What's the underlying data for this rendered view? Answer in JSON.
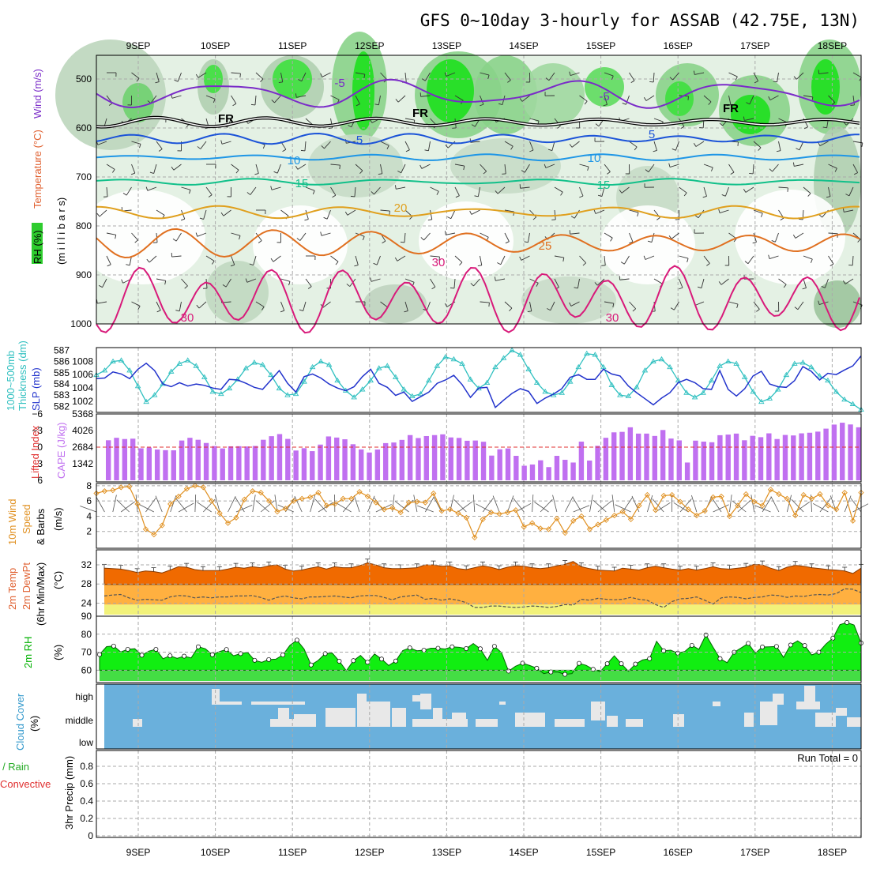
{
  "title": "GFS 0~10day 3-hourly for ASSAB (42.75E, 13N)",
  "dates": [
    "9SEP",
    "10SEP",
    "11SEP",
    "12SEP",
    "13SEP",
    "14SEP",
    "15SEP",
    "16SEP",
    "17SEP",
    "18SEP"
  ],
  "panel_labels": {
    "upper": {
      "wind": "Wind (m/s)",
      "temperature": "Temperature (°C)",
      "rh": "RH (%)",
      "units": "(m i l l i b a r s)"
    },
    "thickness": {
      "thick": "1000~500mb",
      "thick2": "Thickness (dm)",
      "slp": "SLP (mb)"
    },
    "cape": {
      "li": "Lifted Index",
      "cape": "CAPE (J/kg)"
    },
    "wind10": {
      "l1": "10m Wind",
      "l2": "Speed",
      "l3": "& Barbs",
      "units": "(m/s)"
    },
    "temp2m": {
      "l1": "2m Temp",
      "l2": "2m DewPt",
      "l3": "(6hr Min/Max)",
      "units": "(°C)"
    },
    "rh2m": {
      "l1": "2m RH",
      "units": "(%)"
    },
    "cloud": {
      "l1": "Cloud Cover",
      "units": "(%)"
    },
    "precip": {
      "l1": "Total / Rain",
      "l2": "Convective",
      "l3": "3hr Precip (mm)"
    },
    "run_total": "Run Total = 0"
  },
  "contour_labels": {
    "fr": "FR",
    "m5": "-5",
    "p5": "5",
    "p10": "10",
    "p15": "15",
    "p20": "20",
    "p25": "25",
    "p30": "30"
  },
  "colors": {
    "purple": "#7a2bc8",
    "blue": "#1b53d8",
    "lightblue": "#1e96e6",
    "teal": "#12c08a",
    "orange": "#e0a01e",
    "darkorange": "#e07020",
    "magenta": "#d81a7a",
    "slp": "#2233cc",
    "thick": "#30c0c0",
    "cape": "#c070f0",
    "wind": "#e09020",
    "temp": "#f06a00",
    "dew": "#ffb040",
    "rh": "#00dd00",
    "cloud": "#6ab0dc"
  },
  "chart_data": [
    {
      "type": "area",
      "name": "vertical-profile",
      "y_axis": {
        "label": "millibars",
        "ticks": [
          500,
          600,
          700,
          800,
          900,
          1000
        ],
        "range": [
          1000,
          450
        ]
      },
      "x_axis": {
        "ticks": [
          "9SEP",
          "10SEP",
          "11SEP",
          "12SEP",
          "13SEP",
          "14SEP",
          "15SEP",
          "16SEP",
          "17SEP",
          "18SEP"
        ]
      },
      "temperature_contours_C": {
        "-5": 530,
        "FR": 588,
        "5": 622,
        "10": 660,
        "15": 710,
        "20": 772,
        "25": 835,
        "30": 950
      }
    },
    {
      "type": "line",
      "name": "slp-thickness",
      "slp_axis": {
        "ticks": [
          1002,
          1004,
          1006,
          1008
        ],
        "range": [
          1000.6,
          1009.8
        ]
      },
      "thickness_axis": {
        "ticks": [
          582,
          583,
          584,
          585,
          586,
          587
        ],
        "range": [
          581.6,
          587.1
        ]
      },
      "slp_mb": [
        1005.4,
        1005.5,
        1006.4,
        1006.1,
        1005.4,
        1006.8,
        1007.7,
        1006.6,
        1004.6,
        1004.2,
        1004.8,
        1004.3,
        1004.6,
        1004.4,
        1004.0,
        1003.8,
        1005.3,
        1005.2,
        1004.7,
        1004.1,
        1003.8,
        1005.2,
        1006.6,
        1004.7,
        1003.4,
        1005.7,
        1006.1,
        1005.5,
        1004.6,
        1004.0,
        1003.6,
        1004.2,
        1005.7,
        1006.8,
        1004.7,
        1004.1,
        1002.9,
        1003.4,
        1002.0,
        1002.7,
        1003.4,
        1004.7,
        1005.2,
        1005.9,
        1004.5,
        1002.6,
        1004.0,
        1004.1,
        1001.1,
        1002.2,
        1003.2,
        1003.9,
        1003.5,
        1001.7,
        1002.5,
        1003.1,
        1003.9,
        1005.6,
        1006.0,
        1005.3,
        1005.3,
        1006.8,
        1006.1,
        1005.8,
        1004.3,
        1003.3,
        1002.4,
        1001.5,
        1002.5,
        1003.3,
        1004.8,
        1005.3,
        1004.8,
        1003.9,
        1003.8,
        1006.6,
        1003.8,
        1002.8,
        1003.9,
        1005.8,
        1006.5,
        1004.6,
        1004.2,
        1004.1,
        1005.1,
        1007.2,
        1006.5,
        1005.2,
        1006.2,
        1006.0,
        1006.7,
        1007.3,
        1008.8
      ],
      "thickness_dm": [
        584.8,
        585.2,
        586.0,
        586.1,
        585.2,
        583.8,
        582.4,
        583.0,
        584.0,
        585.1,
        585.8,
        586.1,
        585.6,
        584.6,
        583.3,
        583.1,
        583.6,
        584.4,
        585.4,
        585.9,
        585.7,
        584.8,
        583.6,
        583.0,
        583.1,
        584.2,
        585.5,
        586.0,
        585.7,
        584.3,
        583.4,
        582.8,
        583.5,
        584.3,
        585.4,
        585.6,
        584.6,
        583.5,
        582.9,
        583.1,
        584.3,
        585.6,
        586.4,
        586.2,
        585.8,
        584.4,
        583.6,
        584.1,
        585.5,
        586.3,
        587.0,
        586.6,
        585.3,
        584.1,
        583.3,
        583.0,
        583.2,
        584.2,
        585.5,
        586.7,
        586.6,
        585.5,
        583.9,
        583.0,
        582.9,
        583.7,
        585.2,
        586.0,
        586.2,
        585.5,
        584.3,
        583.2,
        582.8,
        583.2,
        584.3,
        585.6,
        586.0,
        585.8,
        584.6,
        583.3,
        582.4,
        582.7,
        583.5,
        584.8,
        585.8,
        585.9,
        585.5,
        584.7,
        584.3,
        583.3,
        582.6,
        582.2,
        581.7
      ]
    },
    {
      "type": "bar",
      "name": "cape-lifted-index",
      "cape_axis": {
        "ticks": [
          1342,
          2684,
          4026,
          5368
        ],
        "range": [
          0,
          5368
        ]
      },
      "lifted_index_axis": {
        "ticks": [
          -6,
          -3,
          0,
          3,
          6
        ],
        "range": [
          6,
          -6
        ]
      },
      "cape_Jkg": [
        3240,
        3440,
        3340,
        3370,
        2590,
        2650,
        2490,
        2440,
        2430,
        3220,
        3440,
        3280,
        3020,
        2770,
        2580,
        2750,
        2760,
        2740,
        2780,
        3280,
        3570,
        3740,
        3350,
        2410,
        2600,
        2360,
        2890,
        3550,
        3460,
        3320,
        2920,
        2500,
        2250,
        2490,
        3010,
        3060,
        3270,
        3660,
        3420,
        3580,
        3660,
        3720,
        3470,
        3430,
        3200,
        3220,
        3120,
        2000,
        2510,
        2580,
        1980,
        1180,
        1280,
        1620,
        1070,
        1980,
        1660,
        1440,
        3130,
        1600,
        2790,
        3440,
        3880,
        3920,
        4290,
        3780,
        3780,
        3590,
        4070,
        3380,
        3230,
        1440,
        3210,
        3130,
        3080,
        3650,
        3700,
        3780,
        3240,
        3600,
        3490,
        3800,
        3340,
        3670,
        3630,
        3800,
        3850,
        3940,
        4180,
        4510,
        4660,
        4520,
        4290
      ]
    },
    {
      "type": "line",
      "name": "wind-10m",
      "y_axis": {
        "ticks": [
          2,
          4,
          6,
          8
        ],
        "range": [
          0,
          8.3
        ]
      },
      "speed_ms": [
        7.0,
        7.3,
        7.4,
        7.8,
        7.9,
        5.6,
        2.3,
        1.6,
        2.8,
        5.6,
        6.6,
        7.6,
        8.0,
        7.8,
        6.0,
        4.4,
        3.1,
        3.8,
        6.2,
        7.3,
        7.1,
        6.0,
        4.6,
        5.0,
        6.0,
        6.3,
        6.5,
        7.1,
        5.4,
        5.6,
        6.3,
        6.3,
        7.2,
        6.6,
        5.8,
        4.9,
        5.1,
        4.5,
        5.8,
        5.9,
        5.8,
        7.0,
        4.7,
        4.9,
        4.4,
        3.8,
        1.2,
        3.6,
        4.5,
        4.3,
        4.5,
        4.8,
        2.6,
        3.1,
        2.4,
        2.3,
        3.7,
        1.8,
        3.4,
        4.0,
        2.3,
        2.9,
        3.5,
        4.1,
        4.6,
        3.6,
        5.4,
        6.8,
        4.8,
        6.7,
        6.8,
        5.9,
        4.9,
        4.1,
        4.7,
        6.5,
        6.6,
        4.0,
        5.4,
        6.9,
        5.9,
        5.4,
        7.5,
        6.9,
        6.3,
        4.1,
        6.8,
        6.3,
        6.9,
        5.4,
        4.9,
        7.1,
        3.4,
        7.1
      ]
    },
    {
      "type": "area",
      "name": "temp-2m",
      "y_axis": {
        "ticks": [
          24,
          28,
          32
        ],
        "range": [
          21.6,
          34.8
        ]
      },
      "temp_C": [
        31.3,
        31.2,
        31.1,
        30.8,
        30.4,
        30.7,
        30.6,
        30.3,
        30.9,
        31.6,
        31.5,
        31.0,
        30.8,
        30.8,
        30.8,
        31.1,
        31.5,
        31.3,
        31.6,
        31.4,
        31.8,
        32.0,
        31.1,
        30.7,
        30.9,
        31.3,
        31.6,
        31.1,
        31.6,
        31.4,
        31.4,
        31.8,
        32.4,
        32.0,
        31.4,
        31.2,
        31.2,
        31.3,
        31.4,
        32.0,
        32.0,
        31.7,
        31.8,
        31.2,
        31.0,
        31.4,
        31.8,
        31.5,
        31.0,
        31.5,
        31.8,
        31.7,
        31.4,
        31.2,
        31.4,
        31.8,
        32.1,
        32.7,
        31.6,
        31.2,
        30.9,
        30.8,
        30.7,
        31.3,
        31.1,
        30.9,
        31.4,
        31.7,
        31.4,
        31.1,
        30.9,
        31.2,
        30.9,
        31.2,
        31.6,
        31.2,
        31.1,
        31.3,
        31.5,
        32.1,
        32.0,
        31.3,
        30.8,
        31.5,
        31.9,
        31.7,
        31.4,
        31.2,
        31.0,
        30.9,
        30.7,
        30.2,
        31.3
      ],
      "dewpoint_C": [
        25.5,
        25.7,
        25.8,
        25.1,
        24.6,
        24.8,
        24.7,
        24.6,
        25.3,
        25.6,
        25.5,
        25.1,
        25.3,
        25.1,
        25.3,
        25.3,
        25.5,
        25.5,
        25.6,
        25.2,
        24.6,
        25.2,
        25.5,
        25.1,
        24.9,
        25.3,
        25.3,
        25.4,
        25.5,
        25.3,
        25.1,
        25.5,
        25.6,
        25.6,
        25.2,
        24.7,
        25.3,
        25.5,
        25.7,
        24.8,
        25.0,
        24.6,
        24.9,
        24.6,
        24.1,
        23.1,
        23.1,
        23.4,
        23.4,
        23.2,
        23.1,
        23.2,
        23.4,
        23.3,
        23.1,
        23.3,
        23.7,
        23.6,
        24.8,
        24.6,
        25.0,
        24.8,
        24.7,
        24.8,
        25.2,
        24.8,
        24.6,
        23.7,
        23.1,
        24.3,
        24.9,
        25.0,
        25.3,
        24.6,
        23.8,
        25.1,
        25.3,
        25.2,
        24.9,
        25.2,
        25.3,
        25.7,
        25.6,
        25.2,
        25.5,
        25.4,
        25.7,
        25.8,
        25.7,
        26.0,
        27.0,
        26.9,
        26.2
      ]
    },
    {
      "type": "area",
      "name": "rh-2m",
      "y_axis": {
        "ticks": [
          60,
          70,
          80,
          90
        ],
        "range": [
          54,
          90
        ]
      },
      "rh_pct": [
        68.7,
        73.1,
        73.4,
        70.1,
        71.6,
        71.9,
        68.3,
        70.6,
        71.6,
        66.4,
        68.0,
        66.6,
        67.8,
        66.8,
        73.0,
        71.9,
        68.6,
        70.3,
        71.5,
        68.0,
        69.2,
        69.9,
        65.5,
        64.4,
        65.9,
        66.1,
        68.5,
        73.8,
        76.7,
        71.8,
        62.9,
        65.4,
        69.2,
        69.5,
        65.0,
        59.7,
        65.3,
        68.2,
        64.4,
        69.0,
        66.2,
        62.6,
        65.1,
        70.9,
        72.4,
        70.8,
        71.1,
        72.2,
        72.2,
        71.8,
        73.0,
        72.7,
        72.0,
        74.8,
        71.9,
        65.5,
        73.3,
        69.8,
        59.5,
        62.2,
        63.9,
        62.6,
        61.1,
        58.1,
        59.0,
        58.9,
        57.7,
        58.1,
        63.8,
        62.7,
        60.5,
        59.2,
        63.6,
        68.0,
        63.6,
        59.4,
        63.4,
        65.7,
        66.4,
        76.1,
        70.8,
        71.1,
        69.5,
        70.4,
        73.8,
        71.6,
        79.6,
        72.8,
        66.4,
        64.2,
        70.0,
        72.4,
        74.9,
        69.4,
        72.9,
        73.0,
        73.2,
        67.1,
        74.0,
        76.3,
        73.7,
        68.5,
        70.0,
        74.5,
        77.8,
        85.3,
        86.5,
        85.1,
        75.1
      ]
    },
    {
      "type": "heatmap",
      "name": "cloud-cover",
      "levels": [
        "high",
        "middle",
        "low"
      ]
    },
    {
      "type": "bar",
      "name": "precip-3hr",
      "y_axis": {
        "ticks": [
          0,
          0.2,
          0.4,
          0.6,
          0.8
        ],
        "range": [
          0,
          1
        ]
      },
      "run_total_mm": 0
    }
  ]
}
